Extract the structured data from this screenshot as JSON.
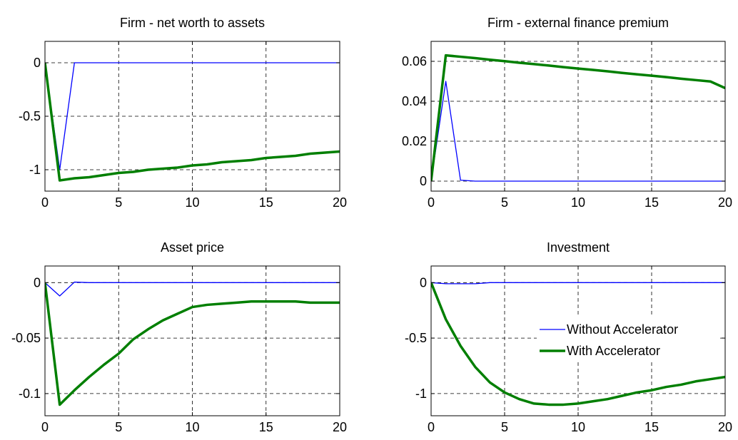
{
  "figure": {
    "series_styles": [
      {
        "name": "Without Accelerator",
        "color": "#0000ff",
        "width": 1.3
      },
      {
        "name": "With Accelerator",
        "color": "#007f00",
        "width": 3.5
      }
    ]
  },
  "chart_data": [
    {
      "type": "line",
      "title": "Firm - net worth to assets",
      "xlabel": "",
      "ylabel": "",
      "xlim": [
        0,
        20
      ],
      "ylim": [
        -1.2,
        0.2
      ],
      "xticks": [
        0,
        5,
        10,
        15,
        20
      ],
      "xtick_labels": [
        "0",
        "5",
        "10",
        "15",
        "20"
      ],
      "yticks": [
        0,
        -0.5,
        -1
      ],
      "ytick_labels": [
        "0",
        "-0.5",
        "-1"
      ],
      "grid": true,
      "legend": null,
      "x": [
        0,
        1,
        2,
        3,
        4,
        5,
        6,
        7,
        8,
        9,
        10,
        11,
        12,
        13,
        14,
        15,
        16,
        17,
        18,
        19,
        20
      ],
      "series": [
        {
          "name": "Without Accelerator",
          "values": [
            0,
            -1.0,
            0,
            0,
            0,
            0,
            0,
            0,
            0,
            0,
            0,
            0,
            0,
            0,
            0,
            0,
            0,
            0,
            0,
            0,
            0
          ]
        },
        {
          "name": "With Accelerator",
          "values": [
            0,
            -1.1,
            -1.08,
            -1.07,
            -1.05,
            -1.03,
            -1.02,
            -1.0,
            -0.99,
            -0.98,
            -0.96,
            -0.95,
            -0.93,
            -0.92,
            -0.91,
            -0.89,
            -0.88,
            -0.87,
            -0.85,
            -0.84,
            -0.83
          ]
        }
      ]
    },
    {
      "type": "line",
      "title": "Firm - external finance premium",
      "xlabel": "",
      "ylabel": "",
      "xlim": [
        0,
        20
      ],
      "ylim": [
        -0.005,
        0.07
      ],
      "xticks": [
        0,
        5,
        10,
        15,
        20
      ],
      "xtick_labels": [
        "0",
        "5",
        "10",
        "15",
        "20"
      ],
      "yticks": [
        0,
        0.02,
        0.04,
        0.06
      ],
      "ytick_labels": [
        "0",
        "0.02",
        "0.04",
        "0.06"
      ],
      "grid": true,
      "legend": null,
      "x": [
        0,
        1,
        2,
        3,
        4,
        5,
        6,
        7,
        8,
        9,
        10,
        11,
        12,
        13,
        14,
        15,
        16,
        17,
        18,
        19,
        20
      ],
      "series": [
        {
          "name": "Without Accelerator",
          "values": [
            0,
            0.05,
            0.0005,
            0,
            0,
            0,
            0,
            0,
            0,
            0,
            0,
            0,
            0,
            0,
            0,
            0,
            0,
            0,
            0,
            0,
            0
          ]
        },
        {
          "name": "With Accelerator",
          "values": [
            0,
            0.063,
            0.0623,
            0.0616,
            0.0608,
            0.0601,
            0.0593,
            0.0586,
            0.0579,
            0.0571,
            0.0564,
            0.0557,
            0.055,
            0.0542,
            0.0535,
            0.0528,
            0.0521,
            0.0513,
            0.0506,
            0.0499,
            0.0466
          ]
        }
      ]
    },
    {
      "type": "line",
      "title": "Asset price",
      "xlabel": "",
      "ylabel": "",
      "xlim": [
        0,
        20
      ],
      "ylim": [
        -0.12,
        0.015
      ],
      "xticks": [
        0,
        5,
        10,
        15,
        20
      ],
      "xtick_labels": [
        "0",
        "5",
        "10",
        "15",
        "20"
      ],
      "yticks": [
        0,
        -0.05,
        -0.1
      ],
      "ytick_labels": [
        "0",
        "-0.05",
        "-0.1"
      ],
      "grid": true,
      "legend": null,
      "x": [
        0,
        1,
        2,
        3,
        4,
        5,
        6,
        7,
        8,
        9,
        10,
        11,
        12,
        13,
        14,
        15,
        16,
        17,
        18,
        19,
        20
      ],
      "series": [
        {
          "name": "Without Accelerator",
          "values": [
            0,
            -0.012,
            0.0005,
            0,
            0,
            0,
            0,
            0,
            0,
            0,
            0,
            0,
            0,
            0,
            0,
            0,
            0,
            0,
            0,
            0,
            0
          ]
        },
        {
          "name": "With Accelerator",
          "values": [
            0,
            -0.11,
            -0.097,
            -0.085,
            -0.074,
            -0.064,
            -0.051,
            -0.042,
            -0.034,
            -0.028,
            -0.022,
            -0.02,
            -0.019,
            -0.018,
            -0.017,
            -0.017,
            -0.017,
            -0.017,
            -0.018,
            -0.018,
            -0.018
          ]
        }
      ]
    },
    {
      "type": "line",
      "title": "Investment",
      "xlabel": "",
      "ylabel": "",
      "xlim": [
        0,
        20
      ],
      "ylim": [
        -1.2,
        0.15
      ],
      "xticks": [
        0,
        5,
        10,
        15,
        20
      ],
      "xtick_labels": [
        "0",
        "5",
        "10",
        "15",
        "20"
      ],
      "yticks": [
        0,
        -0.5,
        -1
      ],
      "ytick_labels": [
        "0",
        "-0.5",
        "-1"
      ],
      "grid": true,
      "legend": "center-right",
      "x": [
        0,
        1,
        2,
        3,
        4,
        5,
        6,
        7,
        8,
        9,
        10,
        11,
        12,
        13,
        14,
        15,
        16,
        17,
        18,
        19,
        20
      ],
      "series": [
        {
          "name": "Without Accelerator",
          "values": [
            0,
            -0.01,
            -0.01,
            -0.01,
            0,
            0,
            0,
            0,
            0,
            0,
            0,
            0,
            0,
            0,
            0,
            0,
            0,
            0,
            0,
            0,
            0
          ]
        },
        {
          "name": "With Accelerator",
          "values": [
            0,
            -0.33,
            -0.57,
            -0.76,
            -0.9,
            -0.99,
            -1.05,
            -1.09,
            -1.1,
            -1.1,
            -1.09,
            -1.07,
            -1.05,
            -1.02,
            -0.99,
            -0.97,
            -0.94,
            -0.92,
            -0.89,
            -0.87,
            -0.85
          ]
        }
      ]
    }
  ]
}
